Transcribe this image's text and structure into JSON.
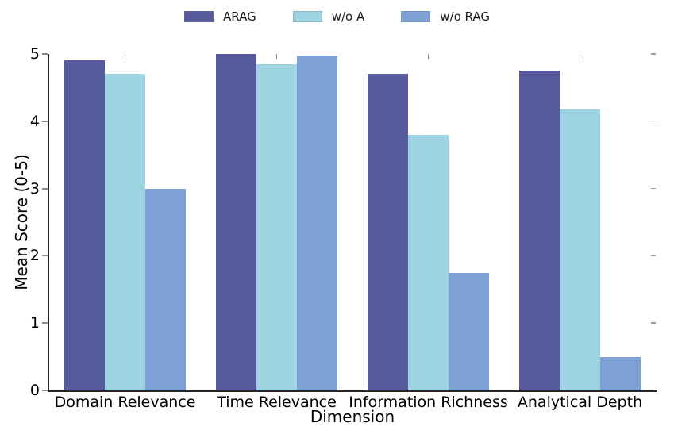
{
  "chart_data": {
    "type": "bar",
    "title": "",
    "xlabel": "Dimension",
    "ylabel": "Mean Score (0-5)",
    "categories": [
      "Domain Relevance",
      "Time Relevance",
      "Information Richness",
      "Analytical Depth"
    ],
    "series": [
      {
        "name": "ARAG",
        "color": "#575b9d",
        "values": [
          4.9,
          5.0,
          4.7,
          4.75
        ]
      },
      {
        "name": "w/o A",
        "color": "#9ed4e1",
        "values": [
          4.7,
          4.85,
          3.8,
          4.17
        ]
      },
      {
        "name": "w/o RAG",
        "color": "#7da0d5",
        "values": [
          3.0,
          4.98,
          1.75,
          0.5
        ]
      }
    ],
    "ylim": [
      0,
      5
    ],
    "y_ticks": [
      0,
      1,
      2,
      3,
      4,
      5
    ],
    "legend_position": "top center",
    "grid": false,
    "colors": {
      "spine": "#262626",
      "tick": "#8a8a8a",
      "background": "#ffffff",
      "text": "#000000"
    }
  }
}
